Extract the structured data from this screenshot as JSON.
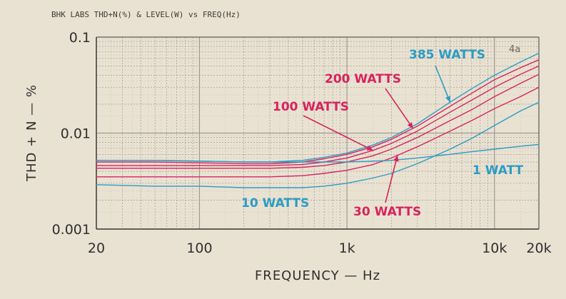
{
  "chart_data": {
    "type": "line",
    "title": "BHK LABS   THD+N(%) & LEVEL(W) vs FREQ(Hz)",
    "xlabel": "FREQUENCY — Hz",
    "ylabel": "THD + N — %",
    "xscale": "log",
    "yscale": "log",
    "xlim": [
      20,
      20000
    ],
    "ylim": [
      0.001,
      0.1
    ],
    "x_ticks": [
      {
        "value": 20,
        "label": "20"
      },
      {
        "value": 100,
        "label": "100"
      },
      {
        "value": 1000,
        "label": "1k"
      },
      {
        "value": 10000,
        "label": "10k"
      },
      {
        "value": 20000,
        "label": "20k"
      }
    ],
    "y_ticks": [
      {
        "value": 0.1,
        "label": "0.1"
      },
      {
        "value": 0.01,
        "label": "0.01"
      },
      {
        "value": 0.001,
        "label": "0.001"
      }
    ],
    "grid": true,
    "corner_mark": "4a",
    "colors": {
      "cyan": "#2c9cc4",
      "red": "#d8235e",
      "grid": "#9f9a90",
      "axis": "#3b3b3b"
    },
    "series": [
      {
        "name": "385 WATTS",
        "color": "#2c9cc4",
        "x": [
          20,
          50,
          100,
          200,
          300,
          500,
          700,
          1000,
          1500,
          2000,
          3000,
          5000,
          7000,
          10000,
          15000,
          20000
        ],
        "y": [
          0.0052,
          0.0052,
          0.0051,
          0.005,
          0.005,
          0.0052,
          0.0056,
          0.0062,
          0.0075,
          0.009,
          0.0125,
          0.021,
          0.029,
          0.04,
          0.055,
          0.068
        ]
      },
      {
        "name": "200 WATTS",
        "color": "#d8235e",
        "x": [
          20,
          50,
          100,
          200,
          300,
          500,
          700,
          1000,
          1500,
          2000,
          3000,
          5000,
          7000,
          10000,
          15000,
          20000
        ],
        "y": [
          0.005,
          0.005,
          0.0049,
          0.0048,
          0.0048,
          0.005,
          0.0054,
          0.006,
          0.0072,
          0.0086,
          0.0118,
          0.019,
          0.026,
          0.036,
          0.048,
          0.058
        ]
      },
      {
        "name": "100 WATTS",
        "color": "#d8235e",
        "x": [
          20,
          50,
          100,
          200,
          300,
          500,
          700,
          1000,
          1500,
          2000,
          3000,
          5000,
          7000,
          10000,
          15000,
          20000
        ],
        "y": [
          0.0046,
          0.0046,
          0.0046,
          0.0046,
          0.0046,
          0.0047,
          0.005,
          0.0055,
          0.0066,
          0.0078,
          0.0105,
          0.0165,
          0.022,
          0.03,
          0.041,
          0.05
        ]
      },
      {
        "name": "",
        "color": "#d8235e",
        "x": [
          20,
          50,
          100,
          200,
          300,
          500,
          700,
          1000,
          1500,
          2000,
          3000,
          5000,
          7000,
          10000,
          15000,
          20000
        ],
        "y": [
          0.0043,
          0.0043,
          0.0043,
          0.0043,
          0.0043,
          0.0044,
          0.0046,
          0.005,
          0.0058,
          0.0068,
          0.009,
          0.0135,
          0.0175,
          0.024,
          0.033,
          0.041
        ]
      },
      {
        "name": "30 WATTS",
        "color": "#d8235e",
        "x": [
          20,
          50,
          100,
          200,
          300,
          500,
          700,
          1000,
          1500,
          2000,
          3000,
          5000,
          7000,
          10000,
          15000,
          20000
        ],
        "y": [
          0.0035,
          0.0035,
          0.0035,
          0.0035,
          0.0035,
          0.0036,
          0.0038,
          0.0041,
          0.0047,
          0.0055,
          0.0072,
          0.0105,
          0.0135,
          0.018,
          0.024,
          0.03
        ]
      },
      {
        "name": "10 WATTS",
        "color": "#2c9cc4",
        "x": [
          20,
          50,
          100,
          200,
          300,
          500,
          700,
          1000,
          1500,
          2000,
          3000,
          5000,
          7000,
          10000,
          15000,
          20000
        ],
        "y": [
          0.0029,
          0.0028,
          0.0028,
          0.0027,
          0.0027,
          0.0027,
          0.0028,
          0.003,
          0.0034,
          0.0038,
          0.0048,
          0.0068,
          0.0088,
          0.012,
          0.017,
          0.021
        ]
      },
      {
        "name": "1 WATT",
        "color": "#2c9cc4",
        "x": [
          20,
          50,
          100,
          200,
          300,
          500,
          700,
          1000,
          1500,
          2000,
          3000,
          5000,
          7000,
          10000,
          15000,
          20000
        ],
        "y": [
          0.0052,
          0.0052,
          0.0051,
          0.005,
          0.005,
          0.005,
          0.005,
          0.005,
          0.0051,
          0.0052,
          0.0055,
          0.006,
          0.0064,
          0.0068,
          0.0073,
          0.0076
        ]
      }
    ]
  }
}
